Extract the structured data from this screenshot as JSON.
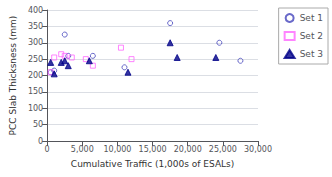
{
  "chart_data": {
    "type": "scatter",
    "xlabel": "Cumulative Traffic (1,000s of ESALs)",
    "ylabel": "PCC Slab Thicksness (mm)",
    "series": [
      {
        "name": "Set 1",
        "color": "#4444bb",
        "marker": "circle-open",
        "x": [
          500,
          1000,
          2500,
          3000,
          6500,
          11000,
          17500,
          24500,
          27500
        ],
        "values": [
          210,
          215,
          325,
          260,
          260,
          225,
          360,
          300,
          245
        ]
      },
      {
        "name": "Set 2",
        "color": "#ff66ff",
        "marker": "square-open",
        "x": [
          500,
          1000,
          2000,
          2500,
          3500,
          5500,
          6500,
          10500,
          12000
        ],
        "values": [
          210,
          255,
          265,
          260,
          255,
          250,
          230,
          285,
          250
        ]
      },
      {
        "name": "Set 3",
        "color": "#000088",
        "marker": "triangle",
        "x": [
          500,
          1000,
          2000,
          2500,
          3000,
          6000,
          11500,
          17500,
          18500,
          24000
        ],
        "values": [
          240,
          205,
          240,
          245,
          230,
          245,
          210,
          300,
          255,
          255
        ]
      }
    ],
    "xlim": [
      0,
      30000
    ],
    "ylim": [
      0,
      400
    ],
    "xticks": [
      0,
      {
        "value": 5000,
        "label": "5,000"
      },
      {
        "value": 10000,
        "label": "10,000"
      },
      {
        "value": 15000,
        "label": "15,000"
      },
      {
        "value": 20000,
        "label": "20,000"
      },
      {
        "value": 25000,
        "label": "25,000"
      },
      {
        "value": 30000,
        "label": "30,000"
      }
    ],
    "yticks": [
      0,
      50,
      100,
      150,
      200,
      250,
      300,
      350,
      400
    ],
    "grid": "y",
    "legend": "right"
  }
}
